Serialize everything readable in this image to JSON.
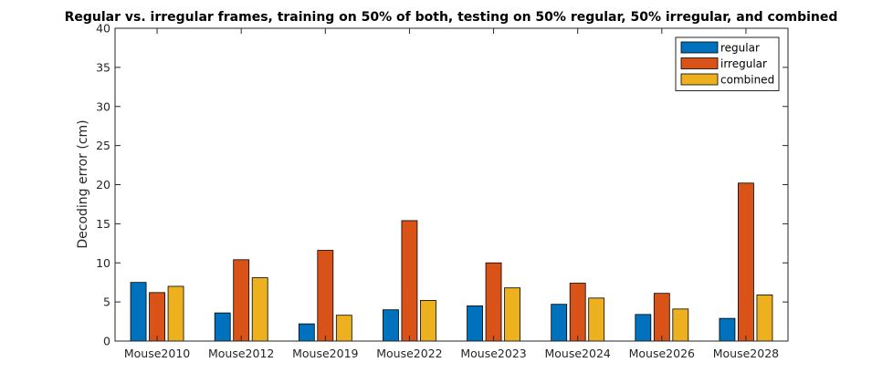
{
  "chart_data": {
    "type": "bar",
    "title": "Regular vs. irregular frames, training on 50% of both, testing on 50% regular, 50% irregular, and combined",
    "xlabel": "",
    "ylabel": "Decoding error (cm)",
    "ylim": [
      0,
      40
    ],
    "yticks": [
      0,
      5,
      10,
      15,
      20,
      25,
      30,
      35,
      40
    ],
    "grid": false,
    "legend_position": "top-right",
    "categories": [
      "Mouse2010",
      "Mouse2012",
      "Mouse2019",
      "Mouse2022",
      "Mouse2023",
      "Mouse2024",
      "Mouse2026",
      "Mouse2028"
    ],
    "series": [
      {
        "name": "regular",
        "color": "#0072BD",
        "values": [
          7.5,
          3.6,
          2.2,
          4.0,
          4.5,
          4.7,
          3.4,
          2.9
        ]
      },
      {
        "name": "irregular",
        "color": "#D95319",
        "values": [
          6.2,
          10.4,
          11.6,
          15.4,
          10.0,
          7.4,
          6.1,
          20.2
        ]
      },
      {
        "name": "combined",
        "color": "#EDB120",
        "values": [
          7.0,
          8.1,
          3.3,
          5.2,
          6.8,
          5.5,
          4.1,
          5.9
        ]
      }
    ]
  }
}
